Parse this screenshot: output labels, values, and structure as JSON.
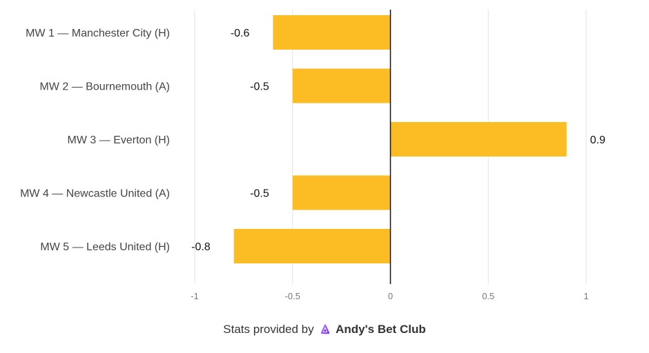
{
  "chart_data": {
    "type": "bar",
    "orientation": "horizontal",
    "categories": [
      "MW 1 — Manchester City (H)",
      "MW 2 — Bournemouth (A)",
      "MW 3 — Everton (H)",
      "MW 4 — Newcastle United (A)",
      "MW 5 — Leeds United (H)"
    ],
    "values": [
      -0.6,
      -0.5,
      0.9,
      -0.5,
      -0.8
    ],
    "data_labels": [
      "-0.6",
      "-0.5",
      "0.9",
      "-0.5",
      "-0.8"
    ],
    "xlim": [
      -1,
      1
    ],
    "x_ticks": [
      -1,
      -0.5,
      0,
      0.5,
      1
    ],
    "x_tick_labels": [
      "-1",
      "-0.5",
      "0",
      "0.5",
      "1"
    ],
    "grid": true,
    "bar_color": "#fbbc24",
    "zero_line_color": "#111111",
    "grid_color": "#e3e3e3"
  },
  "footer": {
    "prefix": "Stats provided by",
    "brand": "Andy's Bet Club",
    "brand_icon": "andys-bet-club-logo-icon",
    "brand_icon_color": "#a855f7"
  }
}
